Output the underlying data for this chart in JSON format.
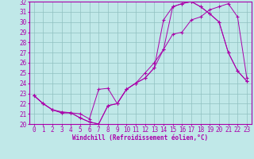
{
  "title": "",
  "xlabel": "Windchill (Refroidissement éolien,°C)",
  "ylabel": "",
  "xlim": [
    -0.5,
    23.5
  ],
  "ylim": [
    20,
    32
  ],
  "xticks": [
    0,
    1,
    2,
    3,
    4,
    5,
    6,
    7,
    8,
    9,
    10,
    11,
    12,
    13,
    14,
    15,
    16,
    17,
    18,
    19,
    20,
    21,
    22,
    23
  ],
  "yticks": [
    20,
    21,
    22,
    23,
    24,
    25,
    26,
    27,
    28,
    29,
    30,
    31,
    32
  ],
  "bg_color": "#c0e8e8",
  "line_color": "#aa00aa",
  "grid_color": "#90c0c0",
  "line1_x": [
    0,
    1,
    2,
    3,
    4,
    5,
    6,
    7,
    8,
    9,
    10,
    11,
    12,
    13,
    14,
    15,
    16,
    17,
    18,
    19,
    20,
    21,
    22,
    23
  ],
  "line1_y": [
    22.8,
    22.0,
    21.4,
    21.1,
    21.1,
    20.6,
    20.2,
    20.0,
    21.8,
    22.0,
    23.4,
    24.0,
    24.5,
    25.5,
    27.3,
    28.8,
    29.0,
    30.2,
    30.5,
    31.2,
    31.5,
    31.8,
    30.5,
    24.5
  ],
  "line2_x": [
    0,
    1,
    2,
    3,
    4,
    5,
    6,
    7,
    8,
    9,
    10,
    11,
    12,
    13,
    14,
    15,
    16,
    17,
    18,
    19,
    20,
    21,
    22,
    23
  ],
  "line2_y": [
    22.8,
    22.0,
    21.4,
    21.1,
    21.1,
    20.6,
    20.2,
    20.0,
    21.8,
    22.0,
    23.4,
    24.0,
    25.0,
    26.0,
    27.3,
    31.5,
    31.8,
    32.0,
    31.5,
    30.8,
    30.0,
    27.0,
    25.2,
    24.2
  ],
  "line3_x": [
    0,
    1,
    2,
    3,
    4,
    5,
    6,
    7,
    8,
    9,
    10,
    11,
    12,
    13,
    14,
    15,
    16,
    17,
    18,
    19,
    20,
    21,
    22,
    23
  ],
  "line3_y": [
    22.8,
    22.0,
    21.4,
    21.2,
    21.1,
    21.0,
    20.5,
    23.4,
    23.5,
    22.0,
    23.4,
    24.0,
    24.5,
    25.5,
    30.2,
    31.5,
    31.8,
    32.0,
    31.5,
    30.8,
    30.0,
    27.0,
    25.2,
    24.2
  ],
  "tick_fontsize": 5.5,
  "xlabel_fontsize": 5.5
}
